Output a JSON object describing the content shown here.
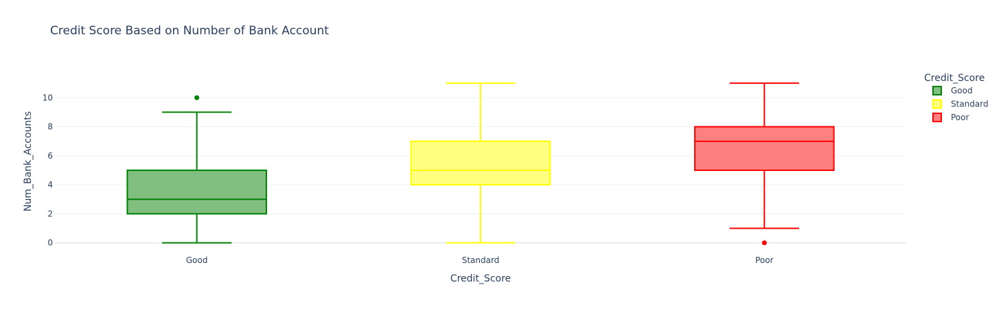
{
  "chart_data": {
    "type": "box",
    "title": "Credit Score Based on Number of Bank Account",
    "xlabel": "Credit_Score",
    "ylabel": "Num_Bank_Accounts",
    "categories": [
      "Good",
      "Standard",
      "Poor"
    ],
    "ylim": [
      -0.3,
      12
    ],
    "yticks": [
      0,
      2,
      4,
      6,
      8,
      10
    ],
    "grid": true,
    "legend": {
      "title": "Credit_Score",
      "position": "top-right"
    },
    "series": [
      {
        "name": "Good",
        "color": "#008000",
        "fill": "#80bf80",
        "min": 0,
        "q1": 2,
        "median": 3,
        "q3": 5,
        "max": 9,
        "outliers": [
          10
        ]
      },
      {
        "name": "Standard",
        "color": "#ffff00",
        "fill": "#ffff80",
        "min": 0,
        "q1": 4,
        "median": 5,
        "q3": 7,
        "max": 11,
        "outliers": []
      },
      {
        "name": "Poor",
        "color": "#ff0000",
        "fill": "#ff8080",
        "min": 1,
        "q1": 5,
        "median": 7,
        "q3": 8,
        "max": 11,
        "outliers": [
          0
        ]
      }
    ]
  }
}
